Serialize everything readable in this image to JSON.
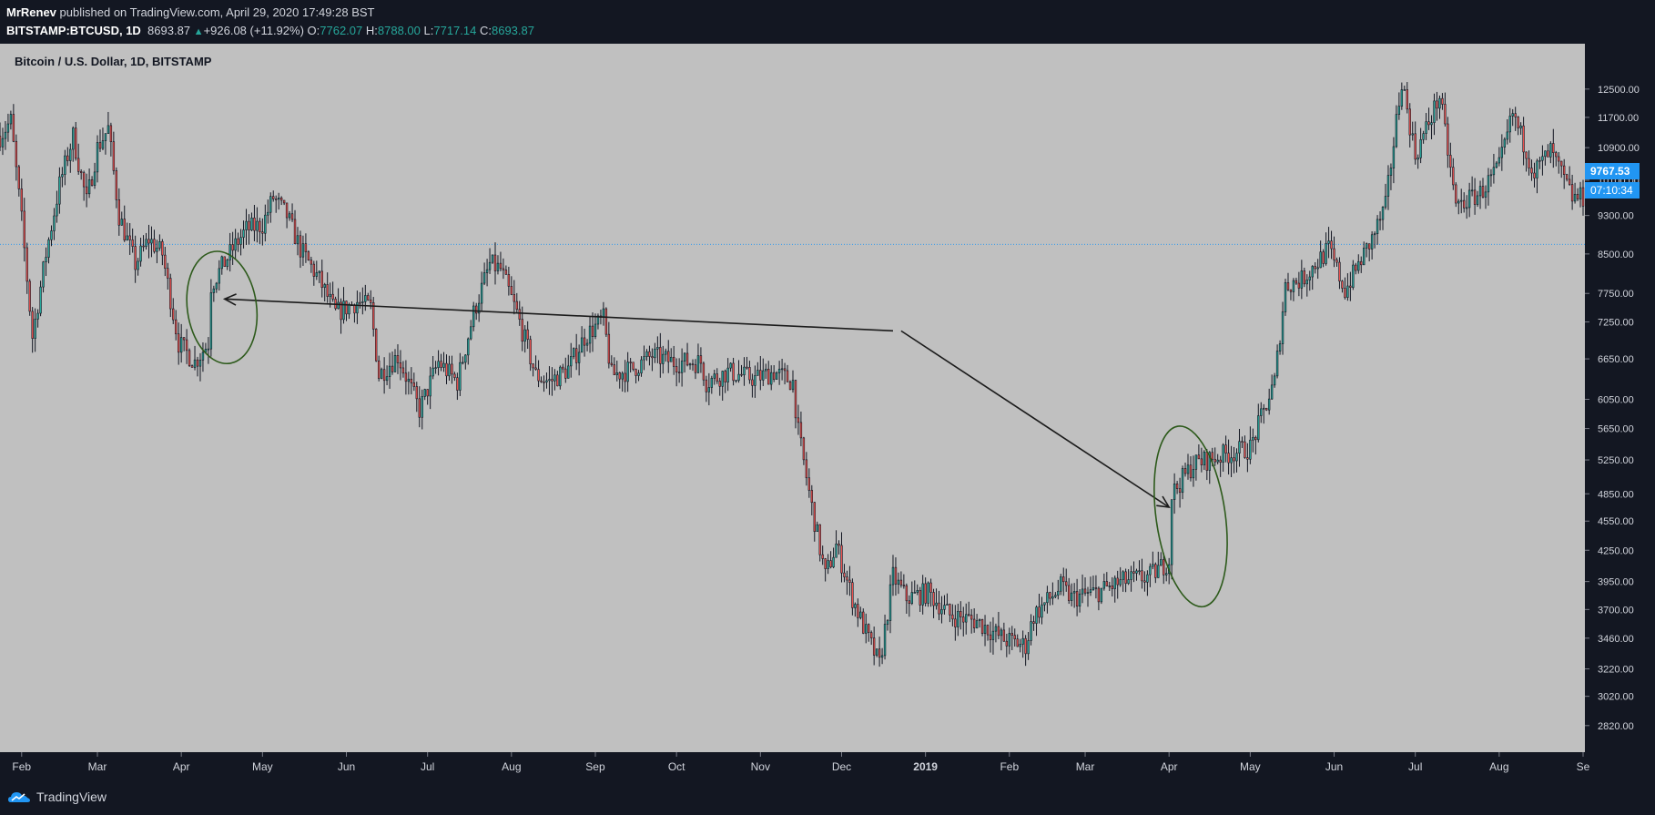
{
  "header": {
    "author": "MrRenev",
    "published_text": "published on TradingView.com, April 29, 2020 17:49:28 BST",
    "symbol": "BITSTAMP:BTCUSD, 1D",
    "last": "8693.87",
    "change": "+926.08 (+11.92%)",
    "open_label": "O:",
    "open": "7762.07",
    "high_label": "H:",
    "high": "8788.00",
    "low_label": "L:",
    "low": "7717.14",
    "close_label": "C:",
    "close": "8693.87"
  },
  "chart_title": "Bitcoin / U.S. Dollar, 1D, BITSTAMP",
  "price_tag": {
    "price": "9767.53",
    "countdown": "07:10:34"
  },
  "footer": {
    "brand": "TradingView"
  },
  "colors": {
    "background": "#c0c0c0",
    "up": "#26a69a",
    "down": "#ef5350",
    "wick": "#131722",
    "drawing": "#1b1b1b",
    "annotation": "#2d5a1b",
    "hline": "#2196f3",
    "axis_bg": "#131722"
  },
  "chart_data": {
    "type": "candlestick",
    "title": "Bitcoin / U.S. Dollar, 1D, BITSTAMP",
    "y_scale": "log",
    "ylim": [
      2650,
      13900
    ],
    "y_ticks": [
      12500,
      11700,
      10900,
      10100,
      9300,
      8500,
      7750,
      7250,
      6650,
      6050,
      5650,
      5250,
      4850,
      4550,
      4250,
      3950,
      3700,
      3460,
      3220,
      3020,
      2820
    ],
    "x_ticks": [
      {
        "label": "Feb",
        "date": "2018-02-01"
      },
      {
        "label": "Mar",
        "date": "2018-03-01"
      },
      {
        "label": "Apr",
        "date": "2018-04-01"
      },
      {
        "label": "May",
        "date": "2018-05-01"
      },
      {
        "label": "Jun",
        "date": "2018-06-01"
      },
      {
        "label": "Jul",
        "date": "2018-07-01"
      },
      {
        "label": "Aug",
        "date": "2018-08-01"
      },
      {
        "label": "Sep",
        "date": "2018-09-01"
      },
      {
        "label": "Oct",
        "date": "2018-10-01"
      },
      {
        "label": "Nov",
        "date": "2018-11-01"
      },
      {
        "label": "Dec",
        "date": "2018-12-01"
      },
      {
        "label": "2019",
        "date": "2019-01-01"
      },
      {
        "label": "Feb",
        "date": "2019-02-01"
      },
      {
        "label": "Mar",
        "date": "2019-03-01"
      },
      {
        "label": "Apr",
        "date": "2019-04-01"
      },
      {
        "label": "May",
        "date": "2019-05-01"
      },
      {
        "label": "Jun",
        "date": "2019-06-01"
      },
      {
        "label": "Jul",
        "date": "2019-07-01"
      },
      {
        "label": "Aug",
        "date": "2019-08-01"
      },
      {
        "label": "Se",
        "date": "2019-09-01"
      }
    ],
    "date_range": [
      "2018-01-24",
      "2019-09-01"
    ],
    "horizontal_line": 8693.87,
    "closes_approx": [
      {
        "date": "2018-01-24",
        "close": 11200
      },
      {
        "date": "2018-01-28",
        "close": 11600
      },
      {
        "date": "2018-02-01",
        "close": 9200
      },
      {
        "date": "2018-02-05",
        "close": 7000
      },
      {
        "date": "2018-02-10",
        "close": 8500
      },
      {
        "date": "2018-02-15",
        "close": 10000
      },
      {
        "date": "2018-02-20",
        "close": 11200
      },
      {
        "date": "2018-02-25",
        "close": 9600
      },
      {
        "date": "2018-03-01",
        "close": 10900
      },
      {
        "date": "2018-03-05",
        "close": 11400
      },
      {
        "date": "2018-03-09",
        "close": 9300
      },
      {
        "date": "2018-03-15",
        "close": 8300
      },
      {
        "date": "2018-03-20",
        "close": 8800
      },
      {
        "date": "2018-03-25",
        "close": 8500
      },
      {
        "date": "2018-03-31",
        "close": 6900
      },
      {
        "date": "2018-04-06",
        "close": 6600
      },
      {
        "date": "2018-04-11",
        "close": 6900
      },
      {
        "date": "2018-04-12",
        "close": 7900
      },
      {
        "date": "2018-04-20",
        "close": 8600
      },
      {
        "date": "2018-04-25",
        "close": 9000
      },
      {
        "date": "2018-05-01",
        "close": 9100
      },
      {
        "date": "2018-05-05",
        "close": 9700
      },
      {
        "date": "2018-05-10",
        "close": 9300
      },
      {
        "date": "2018-05-15",
        "close": 8600
      },
      {
        "date": "2018-05-22",
        "close": 8000
      },
      {
        "date": "2018-05-28",
        "close": 7400
      },
      {
        "date": "2018-06-05",
        "close": 7600
      },
      {
        "date": "2018-06-10",
        "close": 7500
      },
      {
        "date": "2018-06-13",
        "close": 6400
      },
      {
        "date": "2018-06-20",
        "close": 6700
      },
      {
        "date": "2018-06-28",
        "close": 5900
      },
      {
        "date": "2018-07-05",
        "close": 6600
      },
      {
        "date": "2018-07-12",
        "close": 6300
      },
      {
        "date": "2018-07-18",
        "close": 7400
      },
      {
        "date": "2018-07-24",
        "close": 8300
      },
      {
        "date": "2018-07-28",
        "close": 8200
      },
      {
        "date": "2018-08-03",
        "close": 7400
      },
      {
        "date": "2018-08-10",
        "close": 6400
      },
      {
        "date": "2018-08-15",
        "close": 6300
      },
      {
        "date": "2018-08-22",
        "close": 6500
      },
      {
        "date": "2018-08-28",
        "close": 7000
      },
      {
        "date": "2018-09-04",
        "close": 7300
      },
      {
        "date": "2018-09-07",
        "close": 6400
      },
      {
        "date": "2018-09-15",
        "close": 6500
      },
      {
        "date": "2018-09-22",
        "close": 6700
      },
      {
        "date": "2018-09-30",
        "close": 6600
      },
      {
        "date": "2018-10-10",
        "close": 6600
      },
      {
        "date": "2018-10-12",
        "close": 6300
      },
      {
        "date": "2018-10-20",
        "close": 6450
      },
      {
        "date": "2018-10-30",
        "close": 6350
      },
      {
        "date": "2018-11-06",
        "close": 6450
      },
      {
        "date": "2018-11-13",
        "close": 6300
      },
      {
        "date": "2018-11-15",
        "close": 5600
      },
      {
        "date": "2018-11-20",
        "close": 4700
      },
      {
        "date": "2018-11-25",
        "close": 4000
      },
      {
        "date": "2018-11-29",
        "close": 4300
      },
      {
        "date": "2018-12-05",
        "close": 3800
      },
      {
        "date": "2018-12-10",
        "close": 3500
      },
      {
        "date": "2018-12-15",
        "close": 3250
      },
      {
        "date": "2018-12-20",
        "close": 4000
      },
      {
        "date": "2018-12-25",
        "close": 3800
      },
      {
        "date": "2019-01-02",
        "close": 3850
      },
      {
        "date": "2019-01-10",
        "close": 3650
      },
      {
        "date": "2019-01-20",
        "close": 3600
      },
      {
        "date": "2019-01-30",
        "close": 3450
      },
      {
        "date": "2019-02-07",
        "close": 3400
      },
      {
        "date": "2019-02-10",
        "close": 3650
      },
      {
        "date": "2019-02-20",
        "close": 3900
      },
      {
        "date": "2019-02-24",
        "close": 3800
      },
      {
        "date": "2019-03-05",
        "close": 3850
      },
      {
        "date": "2019-03-15",
        "close": 3950
      },
      {
        "date": "2019-03-25",
        "close": 4000
      },
      {
        "date": "2019-04-01",
        "close": 4150
      },
      {
        "date": "2019-04-02",
        "close": 4850
      },
      {
        "date": "2019-04-10",
        "close": 5200
      },
      {
        "date": "2019-04-20",
        "close": 5300
      },
      {
        "date": "2019-05-01",
        "close": 5400
      },
      {
        "date": "2019-05-10",
        "close": 6300
      },
      {
        "date": "2019-05-14",
        "close": 7900
      },
      {
        "date": "2019-05-20",
        "close": 8000
      },
      {
        "date": "2019-05-30",
        "close": 8600
      },
      {
        "date": "2019-06-05",
        "close": 7800
      },
      {
        "date": "2019-06-15",
        "close": 8800
      },
      {
        "date": "2019-06-20",
        "close": 9500
      },
      {
        "date": "2019-06-26",
        "close": 12800
      },
      {
        "date": "2019-07-01",
        "close": 10700
      },
      {
        "date": "2019-07-10",
        "close": 12300
      },
      {
        "date": "2019-07-16",
        "close": 9500
      },
      {
        "date": "2019-07-25",
        "close": 9800
      },
      {
        "date": "2019-08-01",
        "close": 10400
      },
      {
        "date": "2019-08-06",
        "close": 11800
      },
      {
        "date": "2019-08-14",
        "close": 10300
      },
      {
        "date": "2019-08-20",
        "close": 10800
      },
      {
        "date": "2019-08-28",
        "close": 9700
      },
      {
        "date": "2019-09-01",
        "close": 9700
      }
    ],
    "annotations": [
      {
        "type": "arrow",
        "from": {
          "date": "2018-12-20",
          "price": 7100
        },
        "to": {
          "date": "2018-04-17",
          "price": 7650
        }
      },
      {
        "type": "arrow",
        "from": {
          "date": "2018-12-23",
          "price": 7100
        },
        "to": {
          "date": "2019-04-01",
          "price": 4700
        }
      },
      {
        "type": "ellipse",
        "center": {
          "date": "2018-04-16",
          "price": 7500
        }
      },
      {
        "type": "ellipse",
        "center": {
          "date": "2019-04-09",
          "price": 4600
        }
      }
    ]
  }
}
